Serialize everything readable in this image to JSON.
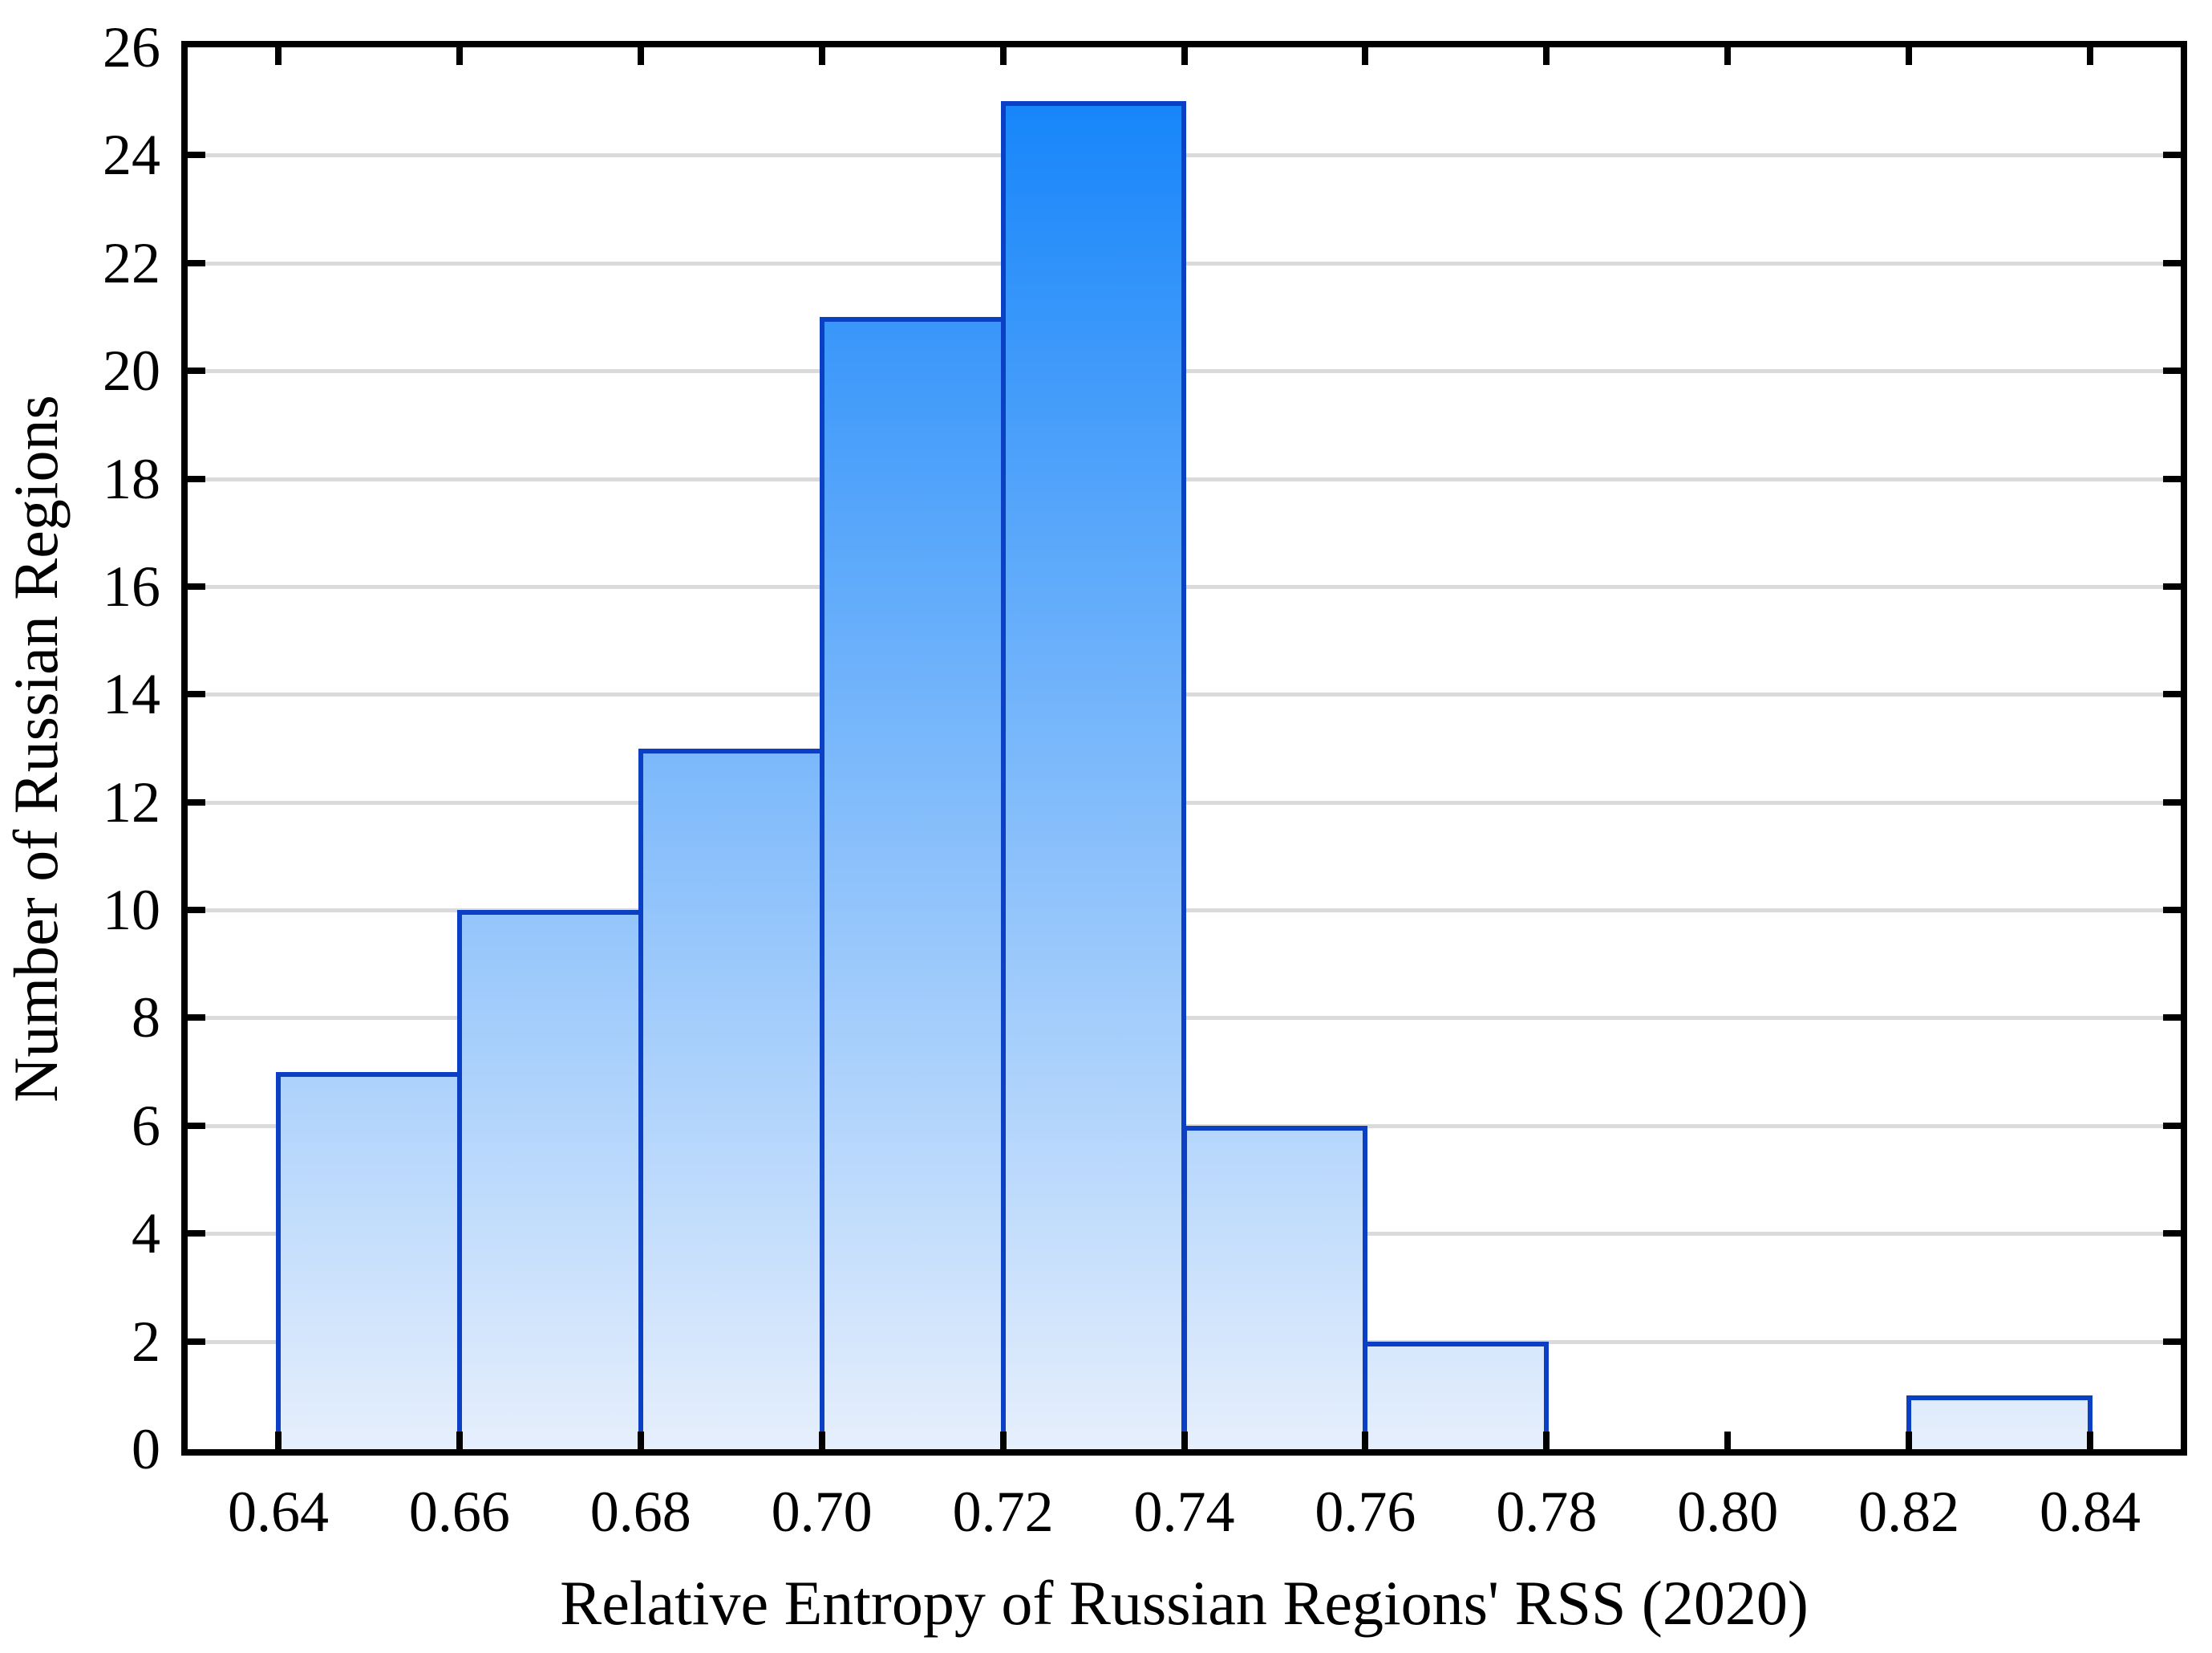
{
  "chart_data": {
    "type": "bar",
    "subtype": "histogram",
    "title": "",
    "xlabel": "Relative Entropy of Russian Regions' RSS (2020)",
    "ylabel": "Number of Russian Regions",
    "bin_width": 0.02,
    "bins": [
      {
        "x0": 0.64,
        "x1": 0.66,
        "count": 7
      },
      {
        "x0": 0.66,
        "x1": 0.68,
        "count": 10
      },
      {
        "x0": 0.68,
        "x1": 0.7,
        "count": 13
      },
      {
        "x0": 0.7,
        "x1": 0.72,
        "count": 21
      },
      {
        "x0": 0.72,
        "x1": 0.74,
        "count": 25
      },
      {
        "x0": 0.74,
        "x1": 0.76,
        "count": 6
      },
      {
        "x0": 0.76,
        "x1": 0.78,
        "count": 2
      },
      {
        "x0": 0.78,
        "x1": 0.8,
        "count": 0
      },
      {
        "x0": 0.8,
        "x1": 0.82,
        "count": 0
      },
      {
        "x0": 0.82,
        "x1": 0.84,
        "count": 1
      }
    ],
    "x_tick_values": [
      0.64,
      0.66,
      0.68,
      0.7,
      0.72,
      0.74,
      0.76,
      0.78,
      0.8,
      0.82,
      0.84
    ],
    "x_tick_labels": [
      "0.64",
      "0.66",
      "0.68",
      "0.70",
      "0.72",
      "0.74",
      "0.76",
      "0.78",
      "0.80",
      "0.82",
      "0.84"
    ],
    "y_tick_values": [
      0,
      2,
      4,
      6,
      8,
      10,
      12,
      14,
      16,
      18,
      20,
      22,
      24,
      26
    ],
    "y_tick_labels": [
      "0",
      "2",
      "4",
      "6",
      "8",
      "10",
      "12",
      "14",
      "16",
      "18",
      "20",
      "22",
      "24",
      "26"
    ],
    "xlim": [
      0.63,
      0.85
    ],
    "ylim": [
      0,
      26
    ],
    "grid": "horizontal",
    "legend_position": "none",
    "colors": {
      "bar_fill_top": "#0e81fa",
      "bar_fill_bottom": "#e6effc",
      "bar_border": "#0c40c4",
      "gridline": "#dadada",
      "axis_frame": "#000000",
      "text": "#000000",
      "background": "#ffffff"
    }
  }
}
